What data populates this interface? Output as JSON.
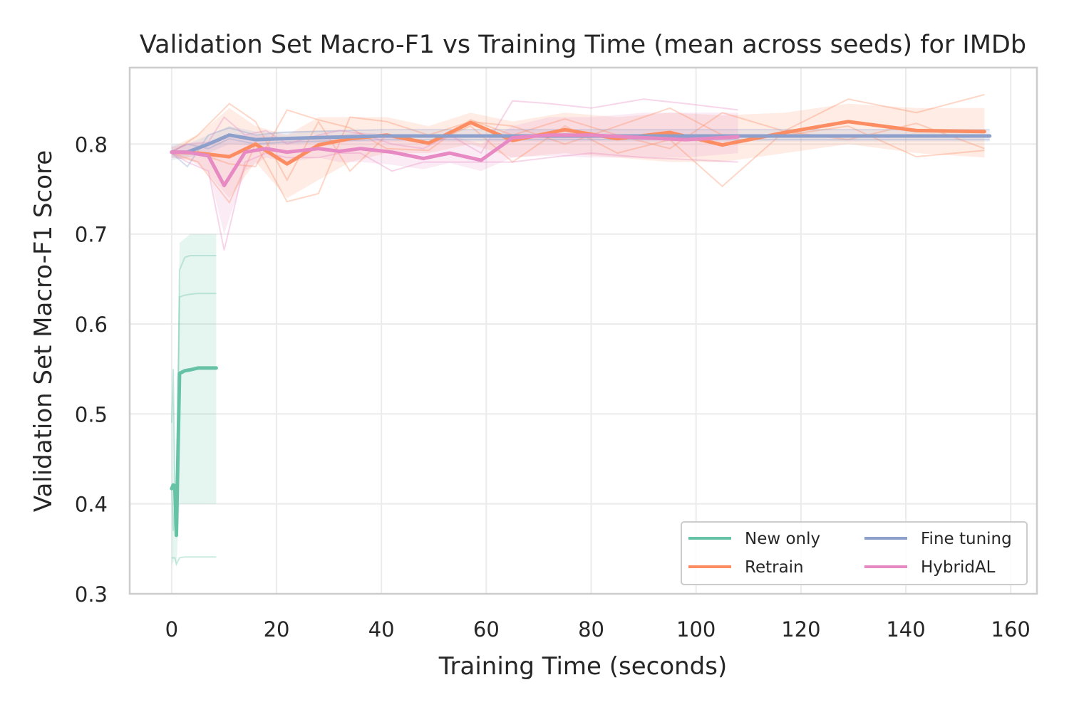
{
  "chart_data": {
    "type": "line",
    "title": "Validation Set Macro-F1 vs Training Time (mean across seeds) for IMDb",
    "xlabel": "Training Time (seconds)",
    "ylabel": "Validation Set Macro-F1 Score",
    "xlim": [
      -8,
      165
    ],
    "ylim": [
      0.3,
      0.885
    ],
    "xticks": [
      0,
      20,
      40,
      60,
      80,
      100,
      120,
      140,
      160
    ],
    "yticks": [
      0.3,
      0.4,
      0.5,
      0.6,
      0.7,
      0.8
    ],
    "xtick_labels": [
      "0",
      "20",
      "40",
      "60",
      "80",
      "100",
      "120",
      "140",
      "160"
    ],
    "ytick_labels": [
      "0.3",
      "0.4",
      "0.5",
      "0.6",
      "0.7",
      "0.8"
    ],
    "grid": true,
    "legend_position": "bottom-right",
    "legend_columns": 2,
    "series": [
      {
        "name": "New only",
        "color": "#66c2a5",
        "x": [
          0,
          0.3,
          0.6,
          0.9,
          1.5,
          2.5,
          3.5,
          5,
          8.5
        ],
        "y": [
          0.417,
          0.421,
          0.42,
          0.365,
          0.545,
          0.548,
          0.549,
          0.551,
          0.551
        ],
        "band_lower": [
          0.332,
          0.335,
          0.34,
          0.33,
          0.4,
          0.4,
          0.4,
          0.4,
          0.4
        ],
        "band_upper": [
          0.49,
          0.55,
          0.45,
          0.4,
          0.69,
          0.695,
          0.7,
          0.7,
          0.7
        ],
        "seed_runs": [
          [
            0.34,
            0.34,
            0.34,
            0.333,
            0.34,
            0.341,
            0.341,
            0.341,
            0.341
          ],
          [
            0.49,
            0.55,
            0.42,
            0.39,
            0.63,
            0.632,
            0.633,
            0.634,
            0.634
          ],
          [
            0.42,
            0.37,
            0.4,
            0.37,
            0.66,
            0.674,
            0.676,
            0.676,
            0.676
          ]
        ]
      },
      {
        "name": "Retrain",
        "color": "#fc8d62",
        "x": [
          0,
          5,
          11,
          16,
          22,
          28,
          34,
          41,
          49,
          57,
          65,
          75,
          85,
          95,
          105,
          117,
          129,
          142,
          155
        ],
        "y": [
          0.791,
          0.79,
          0.786,
          0.8,
          0.778,
          0.799,
          0.806,
          0.81,
          0.801,
          0.824,
          0.804,
          0.816,
          0.806,
          0.813,
          0.799,
          0.813,
          0.825,
          0.815,
          0.814
        ],
        "band_lower": [
          0.785,
          0.78,
          0.74,
          0.78,
          0.74,
          0.76,
          0.78,
          0.79,
          0.79,
          0.8,
          0.785,
          0.79,
          0.785,
          0.78,
          0.78,
          0.79,
          0.8,
          0.79,
          0.785
        ],
        "band_upper": [
          0.797,
          0.81,
          0.84,
          0.82,
          0.81,
          0.83,
          0.83,
          0.83,
          0.82,
          0.835,
          0.825,
          0.835,
          0.83,
          0.835,
          0.832,
          0.835,
          0.845,
          0.84,
          0.84
        ],
        "seed_runs": [
          [
            0.79,
            0.81,
            0.845,
            0.825,
            0.76,
            0.825,
            0.77,
            0.81,
            0.8,
            0.82,
            0.78,
            0.82,
            0.79,
            0.805,
            0.753,
            0.815,
            0.85,
            0.835,
            0.855
          ],
          [
            0.79,
            0.78,
            0.735,
            0.8,
            0.736,
            0.745,
            0.83,
            0.825,
            0.81,
            0.825,
            0.82,
            0.8,
            0.82,
            0.84,
            0.81,
            0.81,
            0.82,
            0.786,
            0.793
          ],
          [
            0.792,
            0.79,
            0.778,
            0.775,
            0.838,
            0.827,
            0.818,
            0.795,
            0.793,
            0.827,
            0.81,
            0.828,
            0.81,
            0.795,
            0.835,
            0.814,
            0.805,
            0.823,
            0.795
          ]
        ]
      },
      {
        "name": "Fine tuning",
        "color": "#8da0cb",
        "x": [
          0,
          3,
          7,
          11,
          16,
          21,
          27,
          33,
          40,
          50,
          60,
          75,
          90,
          105,
          120,
          135,
          156
        ],
        "y": [
          0.791,
          0.791,
          0.8,
          0.81,
          0.805,
          0.806,
          0.807,
          0.808,
          0.809,
          0.809,
          0.809,
          0.809,
          0.809,
          0.809,
          0.809,
          0.809,
          0.809
        ],
        "band_lower": [
          0.782,
          0.785,
          0.79,
          0.8,
          0.798,
          0.8,
          0.801,
          0.802,
          0.803,
          0.803,
          0.803,
          0.803,
          0.803,
          0.803,
          0.803,
          0.803,
          0.803
        ],
        "band_upper": [
          0.8,
          0.8,
          0.81,
          0.82,
          0.814,
          0.814,
          0.815,
          0.815,
          0.815,
          0.815,
          0.815,
          0.815,
          0.815,
          0.815,
          0.815,
          0.815,
          0.815
        ],
        "seed_runs": [
          [
            0.79,
            0.775,
            0.81,
            0.818,
            0.81,
            0.813,
            0.814,
            0.815,
            0.816,
            0.816,
            0.816,
            0.816,
            0.816,
            0.816,
            0.816,
            0.816,
            0.816
          ],
          [
            0.792,
            0.8,
            0.795,
            0.806,
            0.8,
            0.802,
            0.803,
            0.804,
            0.805,
            0.805,
            0.805,
            0.805,
            0.805,
            0.805,
            0.805,
            0.805,
            0.805
          ]
        ]
      },
      {
        "name": "HybridAL",
        "color": "#e78ac3",
        "x": [
          0,
          3,
          7,
          10,
          14,
          18,
          22,
          28,
          32,
          36,
          42,
          48,
          53,
          59,
          65,
          72,
          80,
          90,
          98,
          108
        ],
        "y": [
          0.791,
          0.791,
          0.787,
          0.754,
          0.791,
          0.795,
          0.791,
          0.795,
          0.792,
          0.795,
          0.791,
          0.784,
          0.79,
          0.782,
          0.807,
          0.81,
          0.81,
          0.807,
          0.805,
          0.808
        ],
        "band_lower": [
          0.785,
          0.783,
          0.77,
          0.7,
          0.77,
          0.785,
          0.78,
          0.785,
          0.78,
          0.78,
          0.777,
          0.772,
          0.779,
          0.77,
          0.785,
          0.787,
          0.785,
          0.785,
          0.785,
          0.79
        ],
        "band_upper": [
          0.797,
          0.8,
          0.8,
          0.81,
          0.81,
          0.81,
          0.805,
          0.81,
          0.81,
          0.813,
          0.81,
          0.8,
          0.81,
          0.8,
          0.82,
          0.83,
          0.83,
          0.835,
          0.835,
          0.835
        ],
        "seed_runs": [
          [
            0.792,
            0.8,
            0.802,
            0.83,
            0.81,
            0.815,
            0.8,
            0.81,
            0.815,
            0.812,
            0.8,
            0.795,
            0.81,
            0.79,
            0.848,
            0.845,
            0.84,
            0.85,
            0.845,
            0.838
          ],
          [
            0.79,
            0.78,
            0.77,
            0.682,
            0.78,
            0.79,
            0.785,
            0.785,
            0.79,
            0.79,
            0.77,
            0.78,
            0.78,
            0.78,
            0.78,
            0.785,
            0.79,
            0.785,
            0.783,
            0.78
          ]
        ]
      }
    ]
  }
}
